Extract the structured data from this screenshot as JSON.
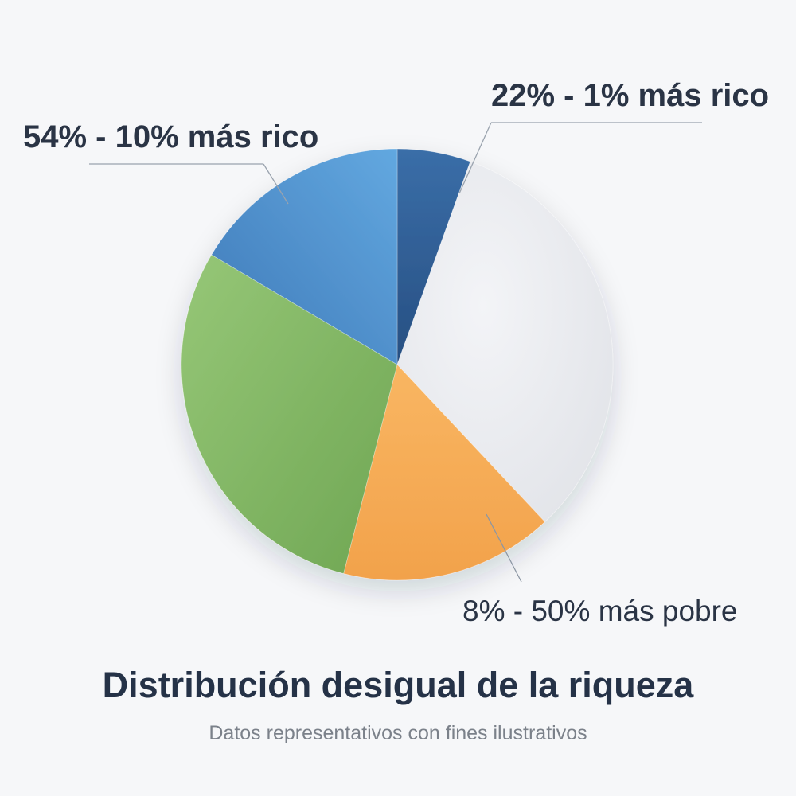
{
  "chart_data": {
    "type": "pie",
    "title": "Distribución desigual de la riqueza",
    "subtitle": "Datos representativos con fines ilustrativos",
    "slices": [
      {
        "label": "",
        "value": 5.5,
        "color": "#2f5f96"
      },
      {
        "label": "",
        "value": 32.5,
        "color": "#e7e8ec"
      },
      {
        "label": "",
        "value": 16,
        "color": "#f5ab58"
      },
      {
        "label": "",
        "value": 29.5,
        "color": "#85b868"
      },
      {
        "label": "",
        "value": 16.5,
        "color": "#4f8ccb"
      }
    ],
    "annotations": [
      "22% - 1% más rico",
      "54% - 10% más rico",
      "8% - 50% más pobre"
    ]
  }
}
